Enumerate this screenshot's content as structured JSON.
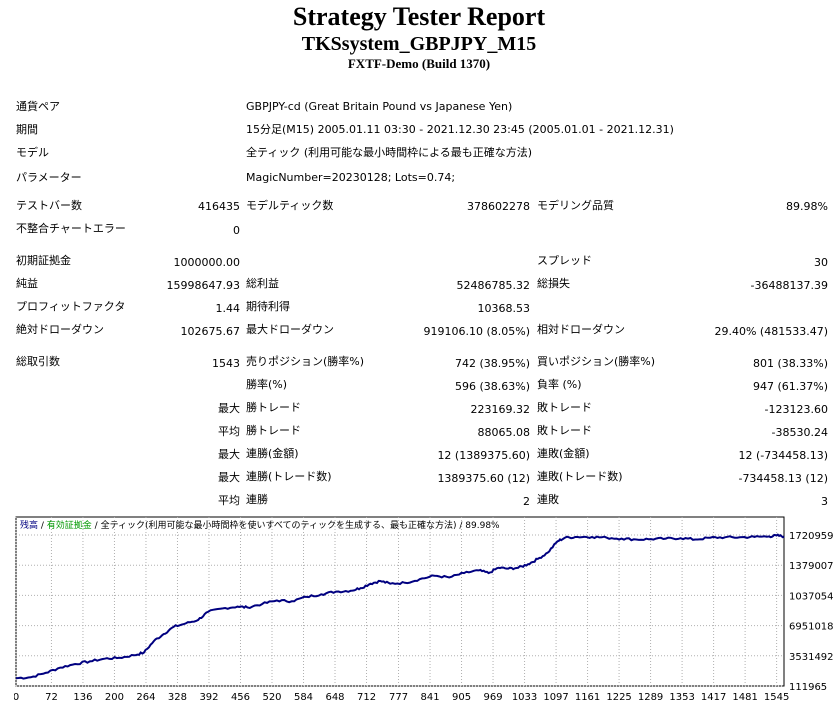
{
  "header": {
    "title": "Strategy Tester Report",
    "subtitle": "TKSsystem_GBPJPY_M15",
    "build": "FXTF-Demo (Build 1370)"
  },
  "info": {
    "pair_label": "通貨ペア",
    "pair_value": "GBPJPY-cd (Great Britain Pound vs Japanese Yen)",
    "period_label": "期間",
    "period_value": "15分足(M15) 2005.01.11 03:30 - 2021.12.30 23:45 (2005.01.01 - 2021.12.31)",
    "model_label": "モデル",
    "model_value": "全ティック (利用可能な最小時間枠による最も正確な方法)",
    "params_label": "パラメーター",
    "params_value": "MagicNumber=20230128; Lots=0.74;"
  },
  "stats": {
    "bars_label": "テストバー数",
    "bars_value": "416435",
    "ticks_label": "モデルティック数",
    "ticks_value": "378602278",
    "quality_label": "モデリング品質",
    "quality_value": "89.98%",
    "mismatch_label": "不整合チャートエラー",
    "mismatch_value": "0",
    "deposit_label": "初期証拠金",
    "deposit_value": "1000000.00",
    "spread_label": "スプレッド",
    "spread_value": "30",
    "netprofit_label": "純益",
    "netprofit_value": "15998647.93",
    "grossprofit_label": "総利益",
    "grossprofit_value": "52486785.32",
    "grossloss_label": "総損失",
    "grossloss_value": "-36488137.39",
    "pf_label": "プロフィットファクタ",
    "pf_value": "1.44",
    "payoff_label": "期待利得",
    "payoff_value": "10368.53",
    "absdd_label": "絶対ドローダウン",
    "absdd_value": "102675.67",
    "maxdd_label": "最大ドローダウン",
    "maxdd_value": "919106.10 (8.05%)",
    "reldd_label": "相対ドローダウン",
    "reldd_value": "29.40% (481533.47)",
    "trades_label": "総取引数",
    "trades_value": "1543",
    "short_label": "売りポジション(勝率%)",
    "short_value": "742 (38.95%)",
    "long_label": "買いポジション(勝率%)",
    "long_value": "801 (38.33%)",
    "winrate_label": "勝率(%)",
    "winrate_value": "596 (38.63%)",
    "lossrate_label": "負率 (%)",
    "lossrate_value": "947 (61.37%)",
    "largest_prefix": "最大",
    "largest_win_label": "勝トレード",
    "largest_win_value": "223169.32",
    "largest_loss_label": "敗トレード",
    "largest_loss_value": "-123123.60",
    "average_prefix": "平均",
    "avg_win_label": "勝トレード",
    "avg_win_value": "88065.08",
    "avg_loss_label": "敗トレード",
    "avg_loss_value": "-38530.24",
    "maxcons_prefix": "最大",
    "maxcons_win_label": "連勝(金額)",
    "maxcons_win_value": "12 (1389375.60)",
    "maxcons_loss_label": "連敗(金額)",
    "maxcons_loss_value": "12 (-734458.13)",
    "maxconsp_prefix": "最大",
    "maxconsp_win_label": "連勝(トレード数)",
    "maxconsp_win_value": "1389375.60 (12)",
    "maxconsp_loss_label": "連敗(トレード数)",
    "maxconsp_loss_value": "-734458.13 (12)",
    "avgcons_prefix": "平均",
    "avgcons_win_label": "連勝",
    "avgcons_win_value": "2",
    "avgcons_loss_label": "連敗",
    "avgcons_loss_value": "3"
  },
  "chart_data": {
    "type": "line",
    "legend": {
      "balance": "残高",
      "sep1": " / ",
      "equity": "有効証拠金",
      "sep2": " / ",
      "model": "全ティック(利用可能な最小時間枠を使いすべてのティックを生成する、最も正確な方法)",
      "sep3": " / ",
      "quality": "89.98%"
    },
    "colors": {
      "line": "#000080",
      "balance_label": "#000080",
      "equity_label": "#009900",
      "grid": "#b0b0b0"
    },
    "x_ticks": [
      0,
      72,
      136,
      200,
      264,
      328,
      392,
      456,
      520,
      584,
      648,
      712,
      777,
      841,
      905,
      969,
      1033,
      1097,
      1161,
      1225,
      1289,
      1353,
      1417,
      1481,
      1545
    ],
    "y_ticks": [
      111965,
      3531492,
      6951018,
      10370545,
      13790072,
      17209598
    ],
    "xlim": [
      0,
      1560
    ],
    "ylim": [
      111965,
      17209598
    ],
    "series": [
      {
        "values": [
          [
            0,
            1000000
          ],
          [
            30,
            1100000
          ],
          [
            60,
            1600000
          ],
          [
            90,
            2200000
          ],
          [
            120,
            2600000
          ],
          [
            150,
            2900000
          ],
          [
            180,
            3200000
          ],
          [
            210,
            3300000
          ],
          [
            240,
            3600000
          ],
          [
            260,
            3900000
          ],
          [
            280,
            5200000
          ],
          [
            300,
            6000000
          ],
          [
            320,
            6800000
          ],
          [
            345,
            7200000
          ],
          [
            370,
            7600000
          ],
          [
            390,
            8500000
          ],
          [
            420,
            8900000
          ],
          [
            450,
            9100000
          ],
          [
            470,
            9000000
          ],
          [
            500,
            9400000
          ],
          [
            530,
            9800000
          ],
          [
            560,
            9700000
          ],
          [
            590,
            10200000
          ],
          [
            620,
            10500000
          ],
          [
            650,
            10800000
          ],
          [
            680,
            10900000
          ],
          [
            700,
            11200000
          ],
          [
            720,
            11700000
          ],
          [
            740,
            12000000
          ],
          [
            760,
            11700000
          ],
          [
            790,
            11800000
          ],
          [
            820,
            12200000
          ],
          [
            850,
            12600000
          ],
          [
            880,
            12400000
          ],
          [
            910,
            12900000
          ],
          [
            940,
            13200000
          ],
          [
            960,
            12900000
          ],
          [
            980,
            13500000
          ],
          [
            1000,
            13400000
          ],
          [
            1020,
            13500000
          ],
          [
            1040,
            13900000
          ],
          [
            1060,
            14500000
          ],
          [
            1080,
            15200000
          ],
          [
            1100,
            16500000
          ],
          [
            1115,
            16900000
          ],
          [
            1140,
            17000000
          ],
          [
            1170,
            17000000
          ],
          [
            1200,
            16900000
          ],
          [
            1230,
            16800000
          ],
          [
            1260,
            16700000
          ],
          [
            1290,
            16750000
          ],
          [
            1320,
            16800000
          ],
          [
            1350,
            16850000
          ],
          [
            1380,
            16700000
          ],
          [
            1410,
            16900000
          ],
          [
            1440,
            16950000
          ],
          [
            1470,
            16950000
          ],
          [
            1500,
            17000000
          ],
          [
            1530,
            17050000
          ],
          [
            1545,
            17150000
          ],
          [
            1560,
            17050000
          ]
        ]
      }
    ]
  }
}
